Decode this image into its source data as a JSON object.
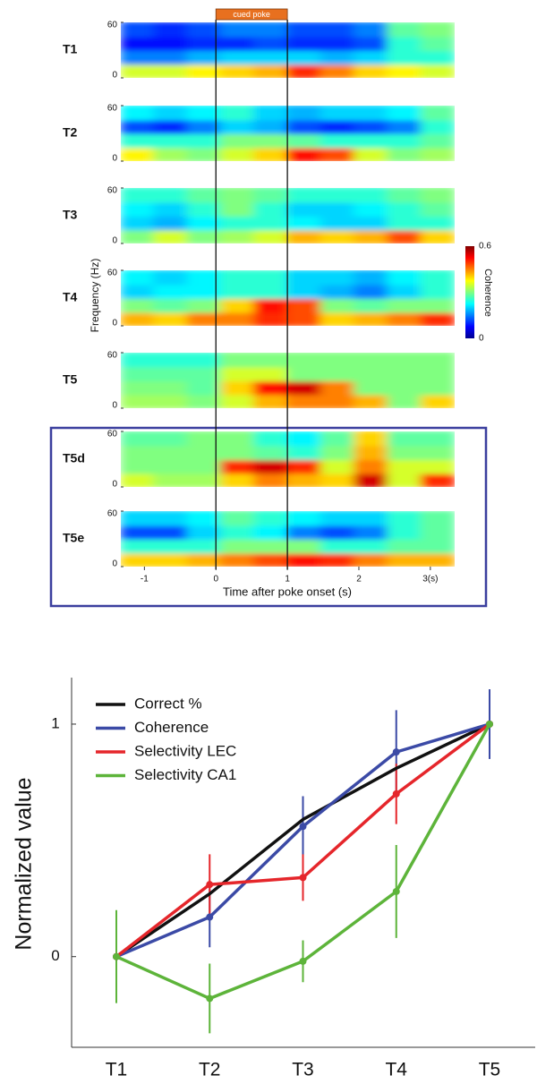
{
  "chart_data": [
    {
      "type": "heatmap",
      "xlabel": "Time after poke onset (s)",
      "ylabel": "Frequency (Hz)",
      "xlim": [
        -1.33,
        3.34
      ],
      "xticks": [
        -1,
        0,
        1,
        2,
        {
          "value": 3,
          "label": "3(s)"
        }
      ],
      "ylim": [
        0,
        60
      ],
      "yticks": [
        0,
        60
      ],
      "annotation": {
        "text": "cued poke",
        "span": [
          0,
          1
        ],
        "color": "#e8701f"
      },
      "colorbar": {
        "label": "Coherence",
        "lim": [
          0,
          0.6
        ],
        "ticks": [
          0,
          0.6
        ]
      },
      "panels": [
        {
          "name": "T1",
          "values": [
            [
              0.35,
              0.35,
              0.38,
              0.4,
              0.42,
              0.5,
              0.45,
              0.4,
              0.38,
              0.35
            ],
            [
              0.15,
              0.15,
              0.18,
              0.2,
              0.2,
              0.2,
              0.18,
              0.2,
              0.25,
              0.25
            ],
            [
              0.08,
              0.08,
              0.1,
              0.1,
              0.12,
              0.1,
              0.1,
              0.12,
              0.25,
              0.28
            ],
            [
              0.12,
              0.1,
              0.12,
              0.15,
              0.15,
              0.12,
              0.12,
              0.15,
              0.28,
              0.3
            ]
          ]
        },
        {
          "name": "T2",
          "values": [
            [
              0.38,
              0.32,
              0.3,
              0.35,
              0.4,
              0.52,
              0.48,
              0.35,
              0.3,
              0.32
            ],
            [
              0.25,
              0.25,
              0.25,
              0.3,
              0.3,
              0.28,
              0.25,
              0.25,
              0.25,
              0.28
            ],
            [
              0.12,
              0.1,
              0.15,
              0.2,
              0.18,
              0.12,
              0.1,
              0.12,
              0.15,
              0.25
            ],
            [
              0.22,
              0.2,
              0.22,
              0.25,
              0.2,
              0.18,
              0.2,
              0.2,
              0.22,
              0.28
            ]
          ]
        },
        {
          "name": "T3",
          "values": [
            [
              0.3,
              0.35,
              0.3,
              0.32,
              0.35,
              0.42,
              0.4,
              0.42,
              0.48,
              0.4
            ],
            [
              0.2,
              0.18,
              0.22,
              0.25,
              0.25,
              0.22,
              0.2,
              0.2,
              0.25,
              0.25
            ],
            [
              0.22,
              0.2,
              0.25,
              0.3,
              0.25,
              0.2,
              0.2,
              0.22,
              0.25,
              0.28
            ],
            [
              0.25,
              0.25,
              0.28,
              0.3,
              0.28,
              0.25,
              0.25,
              0.25,
              0.28,
              0.3
            ]
          ]
        },
        {
          "name": "T4",
          "values": [
            [
              0.42,
              0.4,
              0.45,
              0.45,
              0.5,
              0.48,
              0.4,
              0.42,
              0.45,
              0.5
            ],
            [
              0.3,
              0.28,
              0.3,
              0.4,
              0.52,
              0.48,
              0.3,
              0.28,
              0.3,
              0.3
            ],
            [
              0.2,
              0.22,
              0.22,
              0.25,
              0.25,
              0.2,
              0.18,
              0.15,
              0.2,
              0.25
            ],
            [
              0.22,
              0.2,
              0.22,
              0.25,
              0.25,
              0.2,
              0.2,
              0.18,
              0.22,
              0.25
            ]
          ]
        },
        {
          "name": "T5",
          "values": [
            [
              0.32,
              0.32,
              0.3,
              0.35,
              0.42,
              0.45,
              0.45,
              0.42,
              0.3,
              0.4
            ],
            [
              0.3,
              0.3,
              0.28,
              0.4,
              0.52,
              0.55,
              0.45,
              0.3,
              0.3,
              0.3
            ],
            [
              0.28,
              0.28,
              0.28,
              0.35,
              0.35,
              0.3,
              0.3,
              0.3,
              0.3,
              0.3
            ],
            [
              0.25,
              0.25,
              0.25,
              0.3,
              0.3,
              0.3,
              0.3,
              0.3,
              0.3,
              0.3
            ]
          ]
        },
        {
          "name": "T5d",
          "values": [
            [
              0.35,
              0.32,
              0.32,
              0.4,
              0.45,
              0.42,
              0.4,
              0.55,
              0.35,
              0.5
            ],
            [
              0.3,
              0.3,
              0.3,
              0.5,
              0.55,
              0.5,
              0.35,
              0.45,
              0.35,
              0.35
            ],
            [
              0.3,
              0.3,
              0.3,
              0.3,
              0.28,
              0.25,
              0.3,
              0.42,
              0.3,
              0.3
            ],
            [
              0.28,
              0.28,
              0.3,
              0.3,
              0.25,
              0.22,
              0.28,
              0.4,
              0.28,
              0.28
            ]
          ]
        },
        {
          "name": "T5e",
          "values": [
            [
              0.4,
              0.4,
              0.42,
              0.45,
              0.48,
              0.52,
              0.5,
              0.45,
              0.42,
              0.42
            ],
            [
              0.25,
              0.25,
              0.25,
              0.3,
              0.3,
              0.3,
              0.25,
              0.25,
              0.28,
              0.28
            ],
            [
              0.12,
              0.12,
              0.2,
              0.25,
              0.22,
              0.15,
              0.12,
              0.15,
              0.25,
              0.28
            ],
            [
              0.2,
              0.2,
              0.22,
              0.28,
              0.25,
              0.22,
              0.2,
              0.2,
              0.25,
              0.28
            ]
          ]
        }
      ]
    },
    {
      "type": "line",
      "ylabel": "Normalized value",
      "categories": [
        "T1",
        "T2",
        "T3",
        "T4",
        "T5"
      ],
      "ylim": [
        -0.39,
        1.2
      ],
      "yticks": [
        0,
        1
      ],
      "series": [
        {
          "name": "Correct %",
          "color": "#111111",
          "values": [
            0,
            0.27,
            0.59,
            0.81,
            1
          ]
        },
        {
          "name": "Coherence",
          "color": "#3b4aa6",
          "values": [
            0,
            0.17,
            0.56,
            0.88,
            1
          ],
          "errors": [
            null,
            0.13,
            0.13,
            0.18,
            0.15
          ]
        },
        {
          "name": "Selectivity LEC",
          "color": "#e5262b",
          "values": [
            0,
            0.31,
            0.34,
            0.7,
            1
          ],
          "errors": [
            0.1,
            0.13,
            0.1,
            0.13,
            null
          ]
        },
        {
          "name": "Selectivity CA1",
          "color": "#5db43a",
          "values": [
            0,
            -0.18,
            -0.02,
            0.28,
            1
          ],
          "errors": [
            0.2,
            0.15,
            0.09,
            0.2,
            null
          ]
        }
      ]
    }
  ]
}
